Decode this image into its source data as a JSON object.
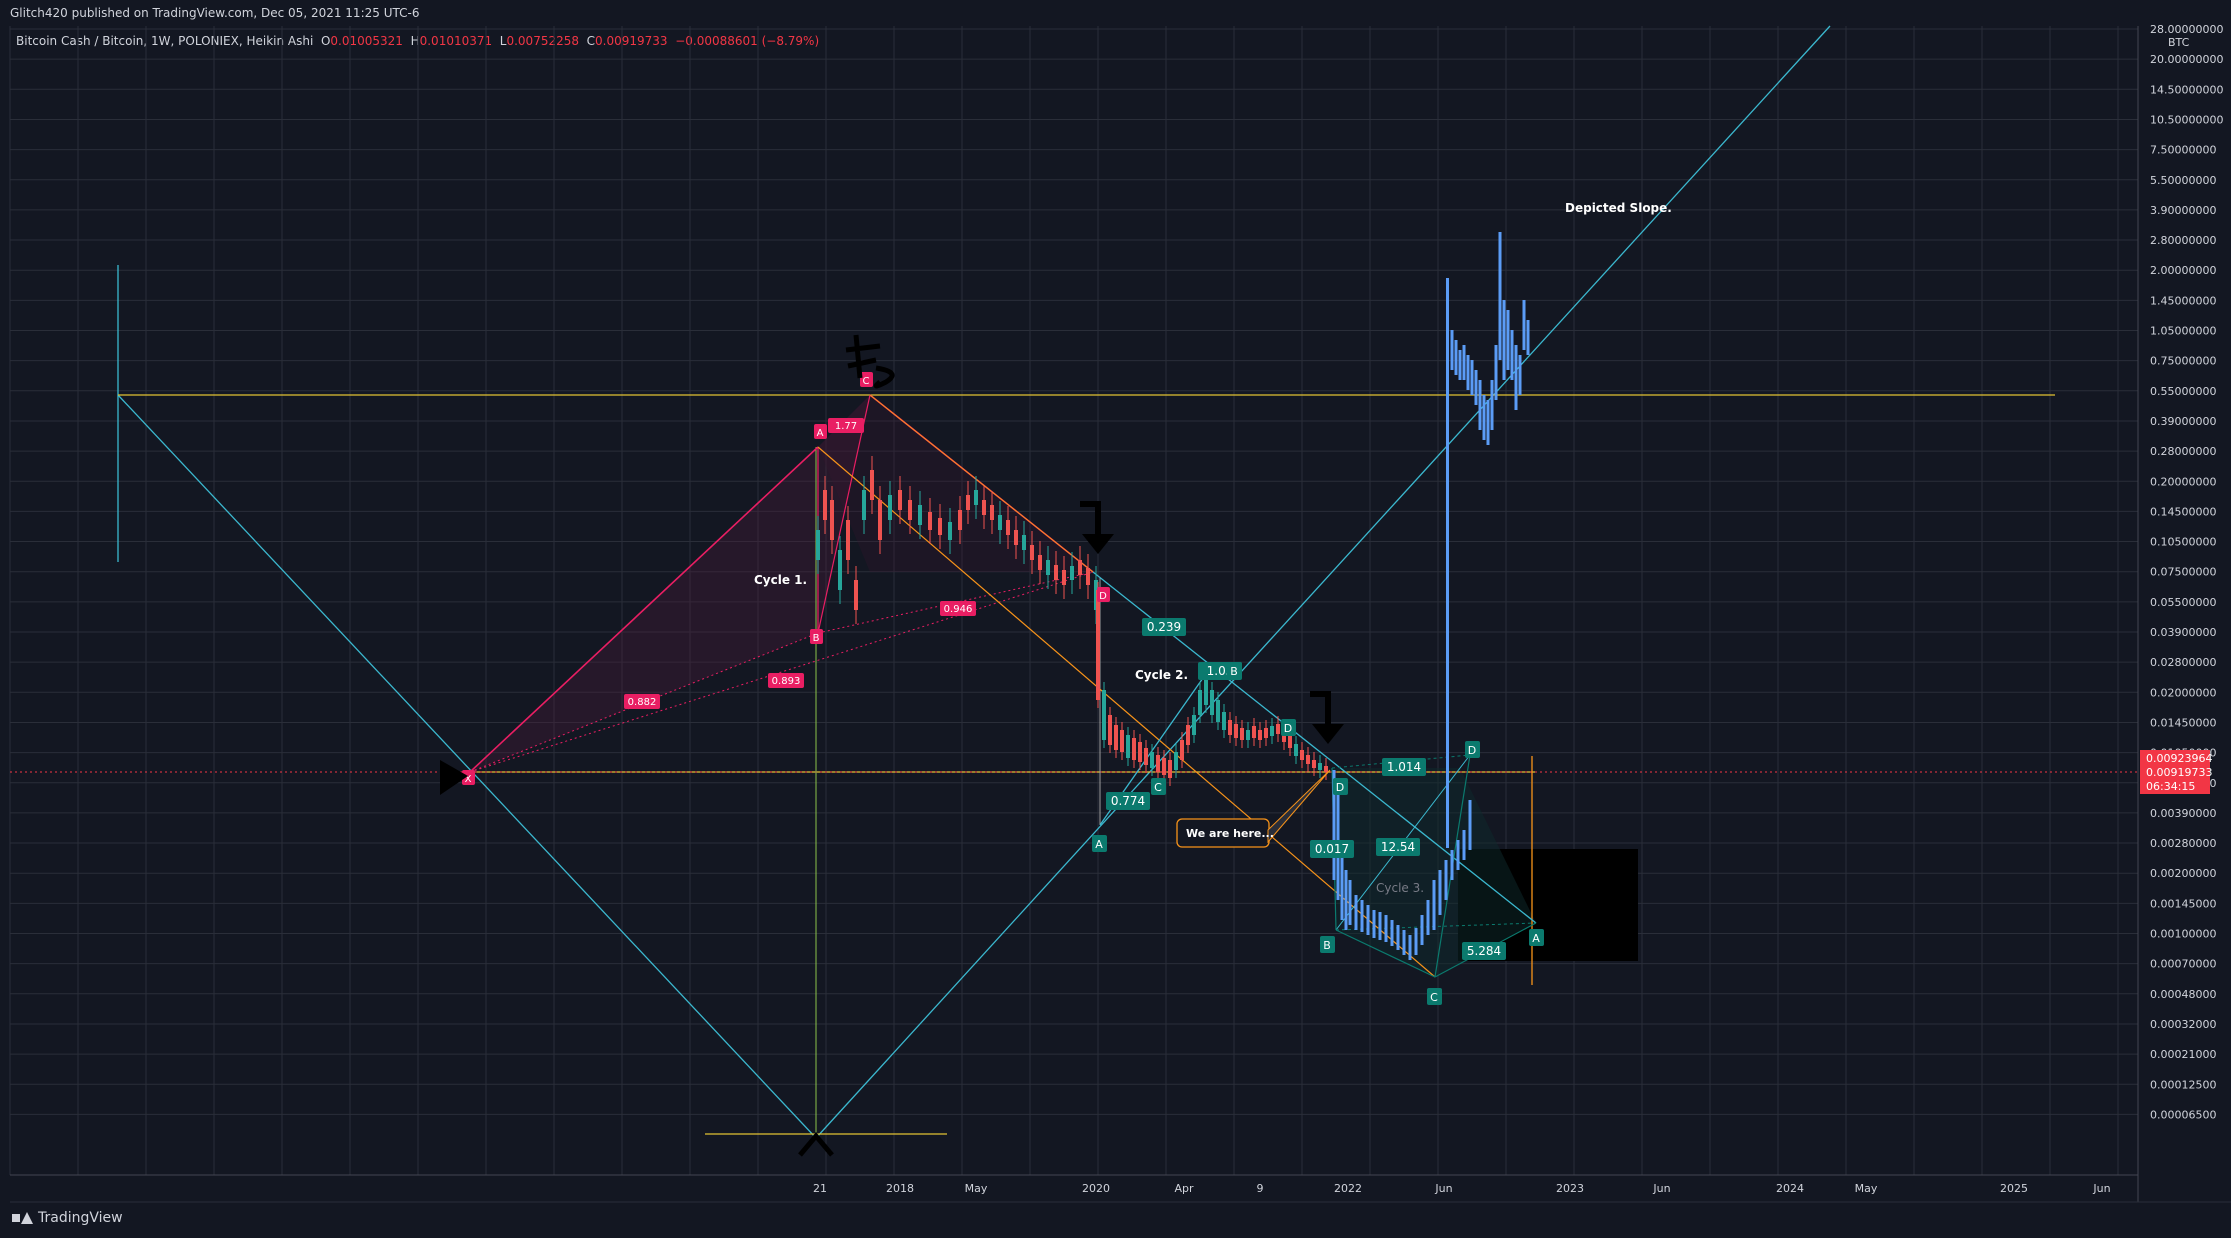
{
  "header": {
    "published": "Glitch420 published on TradingView.com, Dec 05, 2021 11:25 UTC-6"
  },
  "legend": {
    "symbol": "Bitcoin Cash / Bitcoin, 1W, POLONIEX, Heikin Ashi",
    "o_label": "O",
    "o": "0.01005321",
    "h_label": "H",
    "h": "0.01010371",
    "l_label": "L",
    "l": "0.00752258",
    "c_label": "C",
    "c": "0.00919733",
    "change": "−0.00088601 (−8.79%)"
  },
  "brand": {
    "name": "TradingView",
    "icon": "tradingview-logo-icon"
  },
  "colors": {
    "background": "#131722",
    "grid": "#2a2e39",
    "up": "#26a69a",
    "down": "#ef5350",
    "projection": "#5b9cf6",
    "fib_pink": "#e91e63",
    "harmonic_teal": "#0b7a6e",
    "trend_cyan": "#3bb8cf",
    "horizontal_yellow": "#e2c233",
    "orange": "#f7931a",
    "price_badge": "#f23645"
  },
  "chart_data": {
    "type": "candlestick",
    "style": "Heikin Ashi",
    "interval": "1W",
    "exchange": "POLONIEX",
    "y_scale": "log",
    "y_unit": "BTC",
    "grid": true,
    "legend_placement": "top-left",
    "x_ticks": [
      "21",
      "2018",
      "May",
      "2020",
      "Apr",
      "9",
      "2022",
      "Jun",
      "2023",
      "Jun",
      "2024",
      "May",
      "2025",
      "Jun"
    ],
    "y_ticks": [
      "28.00000000",
      "20.00000000",
      "14.50000000",
      "10.50000000",
      "7.50000000",
      "5.50000000",
      "3.90000000",
      "2.80000000",
      "2.00000000",
      "1.45000000",
      "1.05000000",
      "0.75000000",
      "0.55000000",
      "0.39000000",
      "0.28000000",
      "0.20000000",
      "0.14500000",
      "0.10500000",
      "0.07500000",
      "0.05500000",
      "0.03900000",
      "0.02800000",
      "0.02000000",
      "0.01450000",
      "0.01050000",
      "0.00550000",
      "0.00390000",
      "0.00280000",
      "0.00200000",
      "0.00145000",
      "0.00100000",
      "0.00070000",
      "0.00048000",
      "0.00032000",
      "0.00021000",
      "0.00012500",
      "0.00006500"
    ],
    "price_badges": [
      "0.00923964",
      "0.00919733",
      "06:34:15"
    ],
    "annotations": {
      "cycle1": "Cycle 1.",
      "cycle2": "Cycle 2.",
      "cycle3": "Cycle 3.",
      "here": "We are here...",
      "slope": "Depicted Slope."
    },
    "fib_labels": [
      "0.882",
      "0.893",
      "1.77",
      "0.946"
    ],
    "harmonic_ratios": [
      "0.239",
      "0.774",
      "1.05",
      "1.014",
      "0.017",
      "12.54",
      "5.284"
    ],
    "points": [
      "X",
      "A",
      "B",
      "C",
      "D"
    ]
  }
}
